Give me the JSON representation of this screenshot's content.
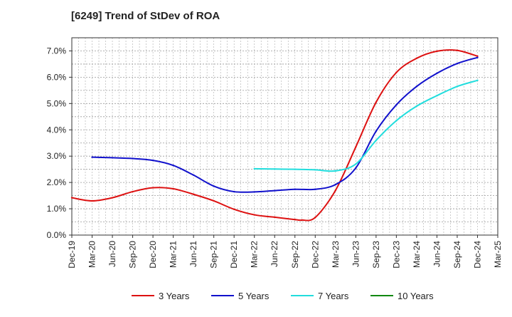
{
  "chart_data": {
    "type": "line",
    "title": "[6249]  Trend of StDev of ROA",
    "xlabel": "",
    "ylabel": "",
    "x_ticks": [
      "Dec-19",
      "Mar-20",
      "Jun-20",
      "Sep-20",
      "Dec-20",
      "Mar-21",
      "Jun-21",
      "Sep-21",
      "Dec-21",
      "Mar-22",
      "Jun-22",
      "Sep-22",
      "Dec-22",
      "Mar-23",
      "Jun-23",
      "Sep-23",
      "Dec-23",
      "Mar-24",
      "Jun-24",
      "Sep-24",
      "Dec-24",
      "Mar-25"
    ],
    "y_ticks": [
      "0.0%",
      "1.0%",
      "2.0%",
      "3.0%",
      "4.0%",
      "5.0%",
      "6.0%",
      "7.0%"
    ],
    "ylim": [
      0,
      7.5
    ],
    "y_unit": "%",
    "grid": true,
    "legend_position": "bottom",
    "series": [
      {
        "name": "3 Years",
        "color": "#dd1111",
        "x": [
          "Dec-19",
          "Mar-20",
          "Jun-20",
          "Sep-20",
          "Dec-20",
          "Mar-21",
          "Jun-21",
          "Sep-21",
          "Dec-21",
          "Mar-22",
          "Jun-22",
          "Sep-22",
          "Oct-22",
          "Dec-22",
          "Mar-23",
          "Jun-23",
          "Sep-23",
          "Dec-23",
          "Mar-24",
          "Jun-24",
          "Sep-24",
          "Dec-24"
        ],
        "values": [
          1.42,
          1.3,
          1.42,
          1.65,
          1.8,
          1.76,
          1.55,
          1.3,
          0.98,
          0.77,
          0.68,
          0.59,
          0.57,
          0.67,
          1.7,
          3.35,
          5.05,
          6.18,
          6.72,
          6.99,
          7.02,
          6.8
        ]
      },
      {
        "name": "5 Years",
        "color": "#1111cc",
        "x": [
          "Mar-20",
          "Jun-20",
          "Sep-20",
          "Dec-20",
          "Mar-21",
          "Jun-21",
          "Sep-21",
          "Dec-21",
          "Mar-22",
          "Jun-22",
          "Sep-22",
          "Dec-22",
          "Mar-23",
          "Jun-23",
          "Sep-23",
          "Dec-23",
          "Mar-24",
          "Jun-24",
          "Sep-24",
          "Dec-24"
        ],
        "values": [
          2.96,
          2.94,
          2.91,
          2.84,
          2.65,
          2.28,
          1.86,
          1.65,
          1.64,
          1.69,
          1.74,
          1.74,
          1.92,
          2.55,
          3.95,
          4.95,
          5.65,
          6.15,
          6.52,
          6.75
        ]
      },
      {
        "name": "7 Years",
        "color": "#22dddd",
        "x": [
          "Mar-22",
          "Jun-22",
          "Sep-22",
          "Dec-22",
          "Mar-23",
          "Jun-23",
          "Sep-23",
          "Dec-23",
          "Mar-24",
          "Jun-24",
          "Sep-24",
          "Dec-24"
        ],
        "values": [
          2.52,
          2.51,
          2.5,
          2.48,
          2.44,
          2.7,
          3.6,
          4.35,
          4.9,
          5.3,
          5.65,
          5.88
        ]
      },
      {
        "name": "10 Years",
        "color": "#118811",
        "x": [],
        "values": []
      }
    ]
  }
}
